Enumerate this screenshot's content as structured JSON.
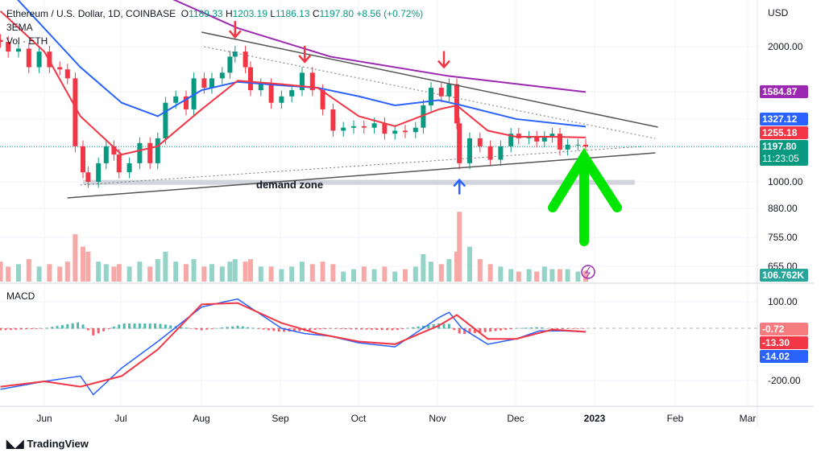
{
  "header": {
    "symbol": "Ethereum / U.S. Dollar, 1D, COINBASE",
    "o_label": "O",
    "open": "1189.33",
    "h_label": "H",
    "high": "1203.19",
    "l_label": "L",
    "low": "1186.13",
    "c_label": "C",
    "close": "1197.80",
    "change": "+8.56 (+0.72%)",
    "indicator1": "3EMA",
    "indicator2": "Vol · ETH",
    "macd_label": "MACD"
  },
  "price_axis": {
    "currency": "USD",
    "ticks": [
      "2000.00",
      "1000.00",
      "880.00",
      "755.00",
      "655.00"
    ],
    "tags": {
      "ema200": "1584.87",
      "ema50": "1327.12",
      "ema20": "1255.18",
      "last": "1197.80",
      "countdown": "11:23:05",
      "volume": "106.762K"
    }
  },
  "macd_axis": {
    "ticks": [
      "100.00",
      "-200.00"
    ],
    "tags": {
      "hist": "-0.72",
      "signal": "-13.30",
      "macd": "-14.02"
    }
  },
  "time_axis": [
    "Jun",
    "Jul",
    "Aug",
    "Sep",
    "Oct",
    "Nov",
    "Dec",
    "2023",
    "Feb",
    "Mar"
  ],
  "annotation": "demand zone",
  "brand": "TradingView",
  "colors": {
    "up": "#089981",
    "down": "#f23645",
    "ema20": "#f23645",
    "ema50": "#2962ff",
    "ema200": "#9c27b0",
    "macd": "#2962ff",
    "signal": "#f23645",
    "arrow_down": "#f23645",
    "arrow_up_small": "#2962ff",
    "arrow_big": "#00e600",
    "demand": "#d1d4dc"
  },
  "chart_data": {
    "type": "candlestick",
    "yscale": "log",
    "ylim": [
      600,
      2300
    ],
    "closes": [
      [
        "2022-05-15",
        2050
      ],
      [
        "2022-05-18",
        1950
      ],
      [
        "2022-05-22",
        1980
      ],
      [
        "2022-05-26",
        1800
      ],
      [
        "2022-05-30",
        1950
      ],
      [
        "2022-06-03",
        1800
      ],
      [
        "2022-06-07",
        1780
      ],
      [
        "2022-06-10",
        1700
      ],
      [
        "2022-06-13",
        1200
      ],
      [
        "2022-06-16",
        1050
      ],
      [
        "2022-06-18",
        1000
      ],
      [
        "2022-06-22",
        1100
      ],
      [
        "2022-06-25",
        1200
      ],
      [
        "2022-06-28",
        1150
      ],
      [
        "2022-06-30",
        1050
      ],
      [
        "2022-07-04",
        1100
      ],
      [
        "2022-07-08",
        1220
      ],
      [
        "2022-07-12",
        1100
      ],
      [
        "2022-07-15",
        1250
      ],
      [
        "2022-07-18",
        1500
      ],
      [
        "2022-07-22",
        1550
      ],
      [
        "2022-07-26",
        1450
      ],
      [
        "2022-07-29",
        1700
      ],
      [
        "2022-08-02",
        1620
      ],
      [
        "2022-08-05",
        1700
      ],
      [
        "2022-08-09",
        1750
      ],
      [
        "2022-08-12",
        1900
      ],
      [
        "2022-08-14",
        1950
      ],
      [
        "2022-08-18",
        1800
      ],
      [
        "2022-08-20",
        1600
      ],
      [
        "2022-08-24",
        1650
      ],
      [
        "2022-08-28",
        1500
      ],
      [
        "2022-09-01",
        1550
      ],
      [
        "2022-09-05",
        1600
      ],
      [
        "2022-09-09",
        1750
      ],
      [
        "2022-09-13",
        1600
      ],
      [
        "2022-09-17",
        1450
      ],
      [
        "2022-09-21",
        1300
      ],
      [
        "2022-09-25",
        1320
      ],
      [
        "2022-09-29",
        1330
      ],
      [
        "2022-10-03",
        1320
      ],
      [
        "2022-10-07",
        1350
      ],
      [
        "2022-10-11",
        1280
      ],
      [
        "2022-10-15",
        1300
      ],
      [
        "2022-10-19",
        1290
      ],
      [
        "2022-10-23",
        1320
      ],
      [
        "2022-10-26",
        1480
      ],
      [
        "2022-10-29",
        1620
      ],
      [
        "2022-11-02",
        1550
      ],
      [
        "2022-11-05",
        1650
      ],
      [
        "2022-11-08",
        1350
      ],
      [
        "2022-11-09",
        1100
      ],
      [
        "2022-11-13",
        1250
      ],
      [
        "2022-11-17",
        1200
      ],
      [
        "2022-11-21",
        1120
      ],
      [
        "2022-11-25",
        1200
      ],
      [
        "2022-11-29",
        1280
      ],
      [
        "2022-12-02",
        1250
      ],
      [
        "2022-12-06",
        1260
      ],
      [
        "2022-12-09",
        1230
      ],
      [
        "2022-12-12",
        1260
      ],
      [
        "2022-12-15",
        1280
      ],
      [
        "2022-12-18",
        1180
      ],
      [
        "2022-12-21",
        1210
      ],
      [
        "2022-12-25",
        1210
      ],
      [
        "2022-12-28",
        1197.8
      ]
    ],
    "volume": [
      40,
      30,
      35,
      45,
      30,
      35,
      30,
      40,
      95,
      70,
      60,
      40,
      35,
      30,
      35,
      30,
      40,
      30,
      45,
      60,
      40,
      35,
      45,
      30,
      35,
      30,
      40,
      45,
      40,
      45,
      30,
      30,
      25,
      30,
      40,
      35,
      40,
      35,
      20,
      25,
      30,
      25,
      30,
      20,
      25,
      30,
      55,
      40,
      35,
      45,
      60,
      140,
      70,
      45,
      35,
      30,
      25,
      20,
      25,
      20,
      30,
      25,
      25,
      25,
      20,
      22
    ],
    "ema20": [
      [
        "2022-05-15",
        2400
      ],
      [
        "2022-06-01",
        1950
      ],
      [
        "2022-06-15",
        1400
      ],
      [
        "2022-07-01",
        1150
      ],
      [
        "2022-07-15",
        1200
      ],
      [
        "2022-08-01",
        1450
      ],
      [
        "2022-08-15",
        1680
      ],
      [
        "2022-09-01",
        1650
      ],
      [
        "2022-09-15",
        1620
      ],
      [
        "2022-10-01",
        1400
      ],
      [
        "2022-10-15",
        1330
      ],
      [
        "2022-11-01",
        1450
      ],
      [
        "2022-11-08",
        1480
      ],
      [
        "2022-11-20",
        1300
      ],
      [
        "2022-12-01",
        1260
      ],
      [
        "2022-12-15",
        1260
      ],
      [
        "2022-12-28",
        1255.18
      ]
    ],
    "ema50": [
      [
        "2022-05-15",
        2800
      ],
      [
        "2022-06-15",
        1800
      ],
      [
        "2022-07-01",
        1500
      ],
      [
        "2022-07-15",
        1400
      ],
      [
        "2022-08-01",
        1600
      ],
      [
        "2022-08-15",
        1670
      ],
      [
        "2022-09-01",
        1640
      ],
      [
        "2022-09-15",
        1620
      ],
      [
        "2022-10-01",
        1550
      ],
      [
        "2022-10-15",
        1480
      ],
      [
        "2022-11-01",
        1520
      ],
      [
        "2022-11-10",
        1480
      ],
      [
        "2022-12-01",
        1380
      ],
      [
        "2022-12-28",
        1327.12
      ]
    ],
    "ema200": [
      [
        "2022-07-05",
        2800
      ],
      [
        "2022-08-15",
        2200
      ],
      [
        "2022-09-20",
        1900
      ],
      [
        "2022-11-05",
        1720
      ],
      [
        "2022-12-28",
        1584.87
      ]
    ],
    "trendlines": [
      {
        "style": "solid",
        "from": [
          "2022-08-01",
          2154
        ],
        "to": [
          "2023-01-25",
          1324
        ]
      },
      {
        "style": "solid",
        "from": [
          "2022-06-10",
          921
        ],
        "to": [
          "2023-01-24",
          1160
        ]
      },
      {
        "style": "dotted",
        "from": [
          "2022-08-02",
          2000
        ],
        "to": [
          "2023-01-24",
          1249
        ]
      },
      {
        "style": "dotted",
        "from": [
          "2022-06-15",
          984
        ],
        "to": [
          "2023-01-19",
          1199
        ]
      }
    ],
    "demand_zone": {
      "from": "2022-06-16",
      "to": "2023-01-16",
      "low": 985,
      "high": 1010
    },
    "down_arrows": [
      [
        "2022-08-14",
        2100
      ],
      [
        "2022-09-10",
        1850
      ],
      [
        "2022-11-03",
        1800
      ]
    ],
    "up_arrow": [
      "2022-11-09",
      1010
    ],
    "macd": [
      [
        "2022-05-15",
        -230
      ],
      [
        "2022-06-01",
        -200
      ],
      [
        "2022-06-15",
        -180
      ],
      [
        "2022-06-20",
        -250
      ],
      [
        "2022-07-01",
        -150
      ],
      [
        "2022-07-15",
        -50
      ],
      [
        "2022-08-01",
        80
      ],
      [
        "2022-08-10",
        100
      ],
      [
        "2022-08-15",
        110
      ],
      [
        "2022-09-01",
        0
      ],
      [
        "2022-09-10",
        -20
      ],
      [
        "2022-09-20",
        -30
      ],
      [
        "2022-10-01",
        -55
      ],
      [
        "2022-10-15",
        -70
      ],
      [
        "2022-11-01",
        40
      ],
      [
        "2022-11-05",
        60
      ],
      [
        "2022-11-10",
        0
      ],
      [
        "2022-11-20",
        -60
      ],
      [
        "2022-12-01",
        -40
      ],
      [
        "2022-12-10",
        -10
      ],
      [
        "2022-12-20",
        -10
      ],
      [
        "2022-12-28",
        -14.02
      ]
    ],
    "signal": [
      [
        "2022-05-15",
        -220
      ],
      [
        "2022-06-01",
        -200
      ],
      [
        "2022-06-15",
        -220
      ],
      [
        "2022-07-01",
        -180
      ],
      [
        "2022-07-15",
        -80
      ],
      [
        "2022-08-01",
        90
      ],
      [
        "2022-08-15",
        95
      ],
      [
        "2022-09-01",
        20
      ],
      [
        "2022-09-15",
        -20
      ],
      [
        "2022-10-01",
        -50
      ],
      [
        "2022-10-15",
        -60
      ],
      [
        "2022-11-01",
        10
      ],
      [
        "2022-11-08",
        50
      ],
      [
        "2022-11-20",
        -40
      ],
      [
        "2022-12-01",
        -40
      ],
      [
        "2022-12-15",
        -5
      ],
      [
        "2022-12-28",
        -13.3
      ]
    ]
  }
}
